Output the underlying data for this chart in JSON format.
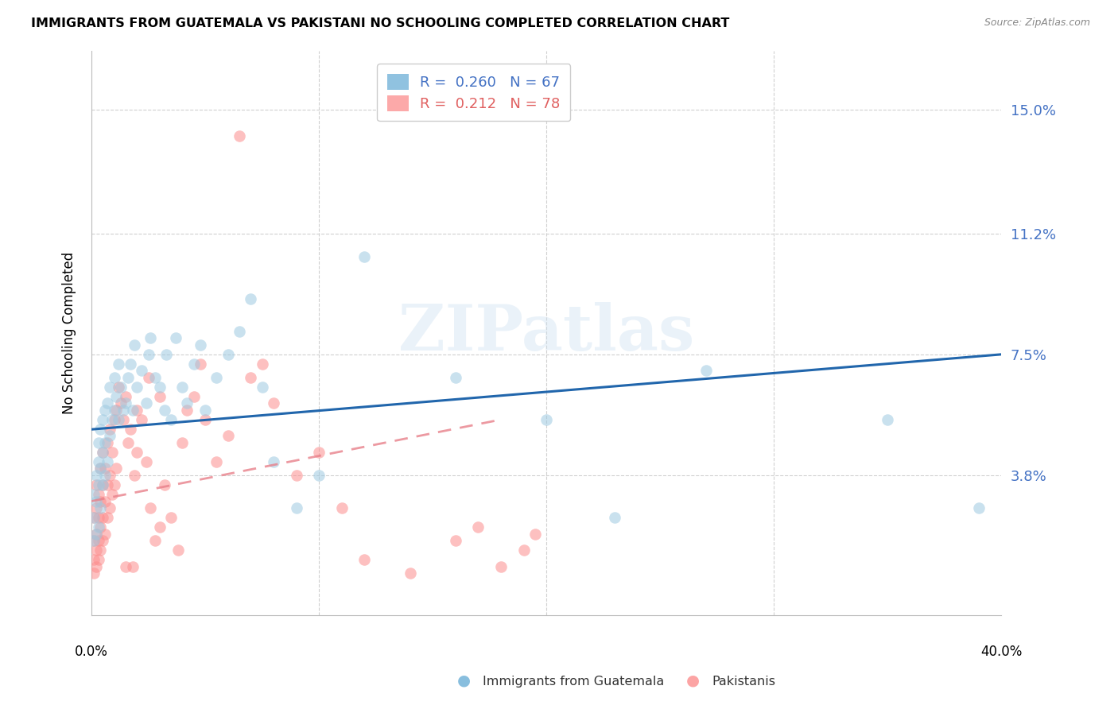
{
  "title": "IMMIGRANTS FROM GUATEMALA VS PAKISTANI NO SCHOOLING COMPLETED CORRELATION CHART",
  "source": "Source: ZipAtlas.com",
  "ylabel": "No Schooling Completed",
  "ytick_labels": [
    "15.0%",
    "11.2%",
    "7.5%",
    "3.8%"
  ],
  "ytick_values": [
    0.15,
    0.112,
    0.075,
    0.038
  ],
  "xmin": 0.0,
  "xmax": 0.4,
  "ymin": -0.005,
  "ymax": 0.168,
  "legend_color1": "#6baed6",
  "legend_color2": "#fc8d8d",
  "scatter_color1": "#9ecae1",
  "scatter_color2": "#fc8d8d",
  "trend_color1": "#2166ac",
  "trend_color2": "#e8808a",
  "watermark_text": "ZIPatlas",
  "trend1_x0": 0.0,
  "trend1_y0": 0.052,
  "trend1_x1": 0.4,
  "trend1_y1": 0.075,
  "trend2_x0": 0.0,
  "trend2_y0": 0.03,
  "trend2_x1": 0.18,
  "trend2_y1": 0.055,
  "guatemala_x": [
    0.001,
    0.001,
    0.001,
    0.002,
    0.002,
    0.002,
    0.003,
    0.003,
    0.003,
    0.003,
    0.004,
    0.004,
    0.004,
    0.005,
    0.005,
    0.005,
    0.006,
    0.006,
    0.006,
    0.007,
    0.007,
    0.008,
    0.008,
    0.009,
    0.01,
    0.01,
    0.011,
    0.012,
    0.012,
    0.013,
    0.014,
    0.015,
    0.016,
    0.017,
    0.018,
    0.019,
    0.02,
    0.022,
    0.024,
    0.025,
    0.026,
    0.028,
    0.03,
    0.032,
    0.033,
    0.035,
    0.037,
    0.04,
    0.042,
    0.045,
    0.048,
    0.05,
    0.055,
    0.06,
    0.065,
    0.07,
    0.075,
    0.08,
    0.09,
    0.1,
    0.12,
    0.16,
    0.2,
    0.23,
    0.27,
    0.35,
    0.39
  ],
  "guatemala_y": [
    0.018,
    0.025,
    0.032,
    0.02,
    0.03,
    0.038,
    0.022,
    0.035,
    0.042,
    0.048,
    0.028,
    0.04,
    0.052,
    0.035,
    0.045,
    0.055,
    0.038,
    0.048,
    0.058,
    0.042,
    0.06,
    0.05,
    0.065,
    0.055,
    0.058,
    0.068,
    0.062,
    0.055,
    0.072,
    0.065,
    0.058,
    0.06,
    0.068,
    0.072,
    0.058,
    0.078,
    0.065,
    0.07,
    0.06,
    0.075,
    0.08,
    0.068,
    0.065,
    0.058,
    0.075,
    0.055,
    0.08,
    0.065,
    0.06,
    0.072,
    0.078,
    0.058,
    0.068,
    0.075,
    0.082,
    0.092,
    0.065,
    0.042,
    0.028,
    0.038,
    0.105,
    0.068,
    0.055,
    0.025,
    0.07,
    0.055,
    0.028
  ],
  "pakistani_x": [
    0.001,
    0.001,
    0.001,
    0.001,
    0.002,
    0.002,
    0.002,
    0.002,
    0.002,
    0.003,
    0.003,
    0.003,
    0.003,
    0.004,
    0.004,
    0.004,
    0.004,
    0.005,
    0.005,
    0.005,
    0.005,
    0.006,
    0.006,
    0.006,
    0.007,
    0.007,
    0.007,
    0.008,
    0.008,
    0.008,
    0.009,
    0.009,
    0.01,
    0.01,
    0.011,
    0.011,
    0.012,
    0.013,
    0.014,
    0.015,
    0.016,
    0.017,
    0.018,
    0.019,
    0.02,
    0.022,
    0.024,
    0.026,
    0.028,
    0.03,
    0.032,
    0.035,
    0.038,
    0.04,
    0.042,
    0.045,
    0.048,
    0.05,
    0.055,
    0.06,
    0.065,
    0.07,
    0.075,
    0.08,
    0.09,
    0.1,
    0.11,
    0.12,
    0.14,
    0.16,
    0.17,
    0.18,
    0.19,
    0.195,
    0.03,
    0.025,
    0.02,
    0.015
  ],
  "pakistani_y": [
    0.008,
    0.012,
    0.018,
    0.025,
    0.01,
    0.015,
    0.02,
    0.028,
    0.035,
    0.012,
    0.018,
    0.025,
    0.032,
    0.015,
    0.022,
    0.03,
    0.04,
    0.018,
    0.025,
    0.035,
    0.045,
    0.02,
    0.03,
    0.04,
    0.025,
    0.035,
    0.048,
    0.028,
    0.038,
    0.052,
    0.032,
    0.045,
    0.035,
    0.055,
    0.04,
    0.058,
    0.065,
    0.06,
    0.055,
    0.062,
    0.048,
    0.052,
    0.01,
    0.038,
    0.045,
    0.055,
    0.042,
    0.028,
    0.018,
    0.022,
    0.035,
    0.025,
    0.015,
    0.048,
    0.058,
    0.062,
    0.072,
    0.055,
    0.042,
    0.05,
    0.142,
    0.068,
    0.072,
    0.06,
    0.038,
    0.045,
    0.028,
    0.012,
    0.008,
    0.018,
    0.022,
    0.01,
    0.015,
    0.02,
    0.062,
    0.068,
    0.058,
    0.01
  ]
}
